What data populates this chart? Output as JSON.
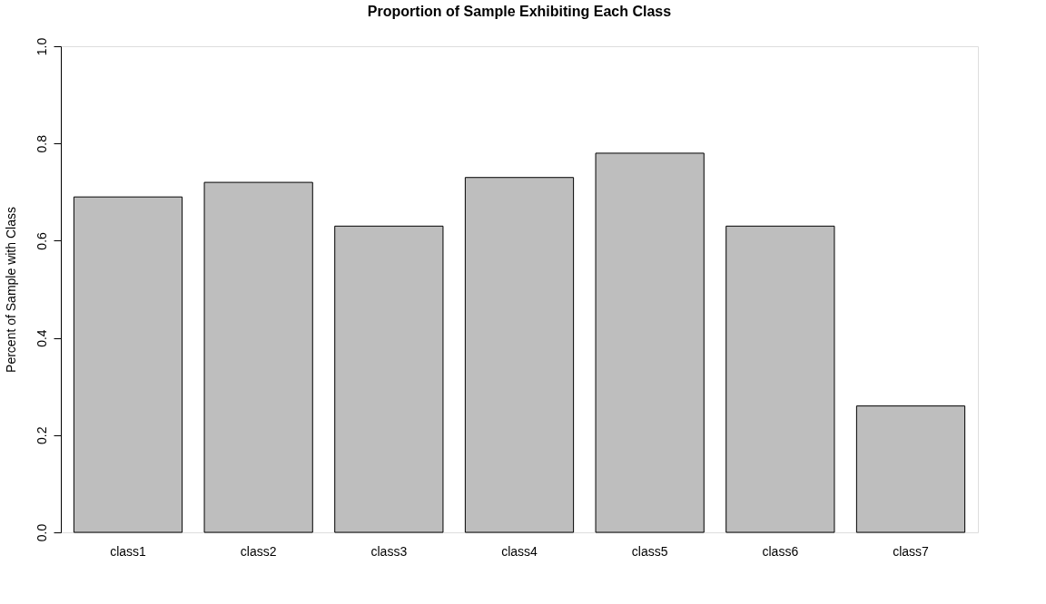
{
  "chart_data": {
    "type": "bar",
    "title": "Proportion of Sample Exhibiting Each Class",
    "ylabel": "Percent of Sample with Class",
    "categories": [
      "class1",
      "class2",
      "class3",
      "class4",
      "class5",
      "class6",
      "class7"
    ],
    "values": [
      0.69,
      0.72,
      0.63,
      0.73,
      0.78,
      0.63,
      0.26
    ],
    "color": "#bebebe",
    "ylim": [
      0,
      1
    ],
    "yticks": [
      {
        "value": 0,
        "label": "0.0"
      },
      0.2,
      0.4,
      0.6,
      0.8,
      {
        "value": 1,
        "label": "1.0"
      }
    ],
    "grid": false
  }
}
